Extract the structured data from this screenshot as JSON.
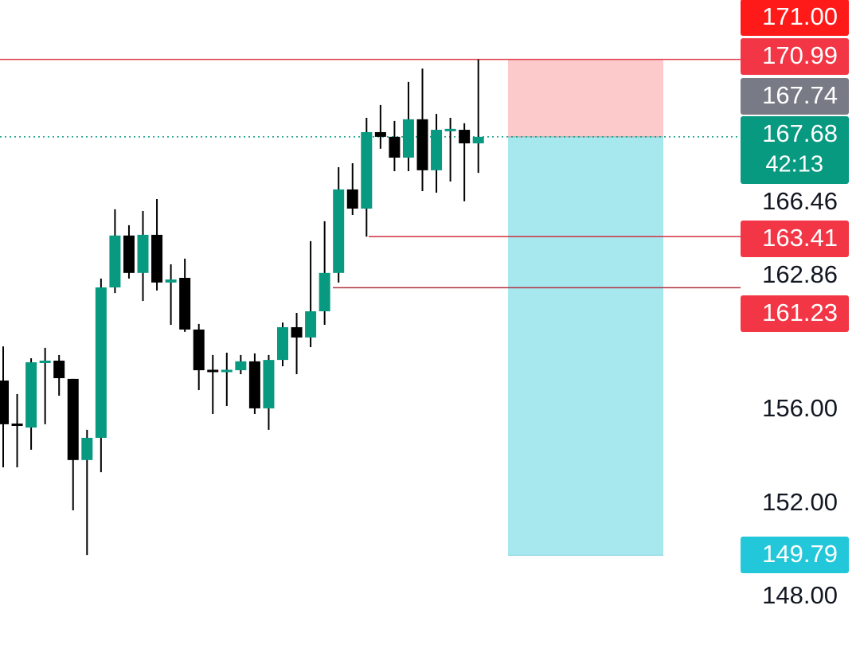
{
  "chart_data": {
    "type": "candlestick",
    "up_color": "#089981",
    "down_color": "#000000",
    "wick_color": "#000000",
    "ylim": [
      145.31,
      173.53
    ],
    "yticks": [
      {
        "value": 148,
        "label": "148.00"
      },
      {
        "value": 152,
        "label": "152.00"
      },
      {
        "value": 156,
        "label": "156.00"
      },
      {
        "value": 162.86,
        "label": "162.86"
      },
      {
        "value": 166.46,
        "label": "166.46"
      }
    ],
    "candles": {
      "open": [
        157.26,
        155.42,
        155.25,
        158.08,
        158.11,
        157.33,
        153.86,
        154.81,
        161.24,
        163.46,
        161.86,
        163.49,
        161.45,
        161.65,
        159.44,
        157.72,
        157.68,
        157.7,
        158.08,
        156.07,
        158.14,
        159.54,
        159.1,
        160.22,
        161.86,
        165.43,
        164.61,
        167.88,
        167.68,
        166.79,
        168.43,
        166.25,
        167.98,
        167.98,
        167.4
      ],
      "high": [
        158.72,
        156.68,
        158.21,
        158.66,
        158.35,
        157.33,
        155.15,
        161.62,
        164.58,
        163.9,
        164.51,
        165.02,
        162.23,
        162.47,
        159.68,
        158.35,
        158.45,
        158.35,
        158.42,
        158.35,
        159.74,
        160.15,
        163.22,
        164.07,
        166.38,
        166.55,
        168.49,
        169.04,
        168.36,
        170.03,
        170.6,
        168.66,
        168.49,
        168.26,
        170.99
      ],
      "low": [
        153.55,
        153.55,
        154.3,
        155.39,
        156.61,
        151.71,
        149.8,
        153.34,
        161.0,
        161.62,
        160.66,
        161.11,
        159.64,
        159.34,
        156.85,
        155.83,
        156.17,
        157.53,
        155.83,
        155.15,
        157.87,
        157.53,
        158.69,
        159.64,
        161.45,
        164.34,
        163.41,
        167.17,
        166.21,
        166.21,
        165.36,
        165.29,
        165.77,
        164.92,
        166.14
      ],
      "close": [
        155.39,
        155.32,
        158.04,
        158.11,
        157.36,
        153.86,
        154.81,
        161.24,
        163.46,
        161.86,
        163.49,
        161.45,
        161.58,
        159.44,
        157.7,
        157.68,
        157.72,
        158.08,
        156.07,
        158.14,
        159.54,
        159.1,
        160.22,
        161.86,
        165.43,
        164.61,
        167.88,
        167.68,
        166.79,
        168.43,
        166.25,
        167.98,
        168.02,
        167.4,
        167.68
      ]
    },
    "price_labels": [
      {
        "value": 171.0,
        "label": "171.00",
        "color": "#ff1a1a"
      },
      {
        "value": 170.99,
        "label": "170.99",
        "color": "#f23645"
      },
      {
        "value": 167.74,
        "label": "167.74",
        "color": "#787b86"
      },
      {
        "value": 167.68,
        "label": "167.68",
        "color": "#089981",
        "countdown": "42:13"
      },
      {
        "value": 163.41,
        "label": "163.41",
        "color": "#f23645"
      },
      {
        "value": 161.23,
        "label": "161.23",
        "color": "#f23645"
      },
      {
        "value": 149.79,
        "label": "149.79",
        "color": "#22c7d9"
      }
    ],
    "horizontal_lines": [
      {
        "value": 170.99,
        "color": "#e0404f"
      },
      {
        "value": 163.41,
        "color": "#d03040"
      },
      {
        "value": 161.23,
        "color": "#b03040"
      }
    ],
    "position": {
      "stop": 170.99,
      "entry": 167.68,
      "target": 149.79,
      "stop_color": "#fdcacb",
      "target_color": "#a6e8ee"
    }
  }
}
